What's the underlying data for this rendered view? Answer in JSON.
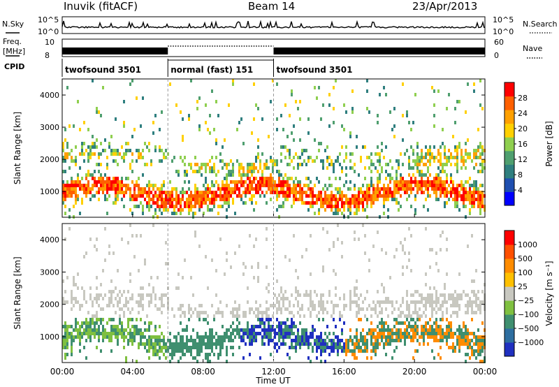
{
  "header": {
    "station": "Inuvik (fitACF)",
    "beam": "Beam 14",
    "date": "23/Apr/2013"
  },
  "panels": {
    "nsky_label": "N.Sky",
    "nsearch_label": "N.Search",
    "freq_label_line1": "Freq.",
    "freq_label_line2": "[MHz]",
    "nave_label": "Nave",
    "cpid_label": "CPID",
    "noise_ticks": [
      "10^5",
      "10^0"
    ],
    "freq_ticks": [
      "10",
      "8"
    ],
    "nave_ticks": [
      "60",
      "0"
    ]
  },
  "cpid_segments": [
    {
      "label": "twofsound 3501",
      "start": 0,
      "end": 6
    },
    {
      "label": "normal (fast) 151",
      "start": 6,
      "end": 12
    },
    {
      "label": "twofsound 3501",
      "start": 12,
      "end": 24
    }
  ],
  "colorbars": {
    "power": {
      "label": "Power [dB]",
      "ticks": [
        "28",
        "24",
        "20",
        "16",
        "12",
        "8",
        "4"
      ],
      "colors": [
        "#0000ff",
        "#1f4fb0",
        "#2f7f7f",
        "#4f9f6f",
        "#8fcf4f",
        "#ffd000",
        "#ffa000",
        "#ff6000",
        "#ff0000"
      ]
    },
    "velocity": {
      "label": "Velocity [m s⁻¹]",
      "ticks": [
        "1000",
        "500",
        "100",
        "25",
        "−25",
        "−100",
        "−500",
        "−1000"
      ],
      "colors": [
        "#2030c0",
        "#2e6ea0",
        "#3f8f6f",
        "#7fc040",
        "#c8c8c0",
        "#ffc000",
        "#ff8c00",
        "#ff5000",
        "#ff0000"
      ]
    }
  },
  "chart_data": {
    "type": "heatmap",
    "title": "Inuvik (fitACF) Beam 14 23/Apr/2013",
    "xlabel": "Time UT",
    "x_ticks": [
      "00:00",
      "04:00",
      "08:00",
      "12:00",
      "16:00",
      "20:00",
      "00:00"
    ],
    "xlim": [
      0,
      24
    ],
    "panels": [
      {
        "name": "Power",
        "ylabel": "Slant Range [km]",
        "y_ticks": [
          1000,
          2000,
          3000,
          4000
        ],
        "ylim": [
          200,
          4500
        ],
        "colorbar_label": "Power [dB]",
        "scale_range": [
          0,
          30
        ]
      },
      {
        "name": "Velocity",
        "ylabel": "Slant Range [km]",
        "y_ticks": [
          1000,
          2000,
          3000,
          4000
        ],
        "ylim": [
          200,
          4500
        ],
        "colorbar_label": "Velocity [m s⁻¹]",
        "scale_range": [
          -1000,
          1000
        ]
      }
    ]
  }
}
